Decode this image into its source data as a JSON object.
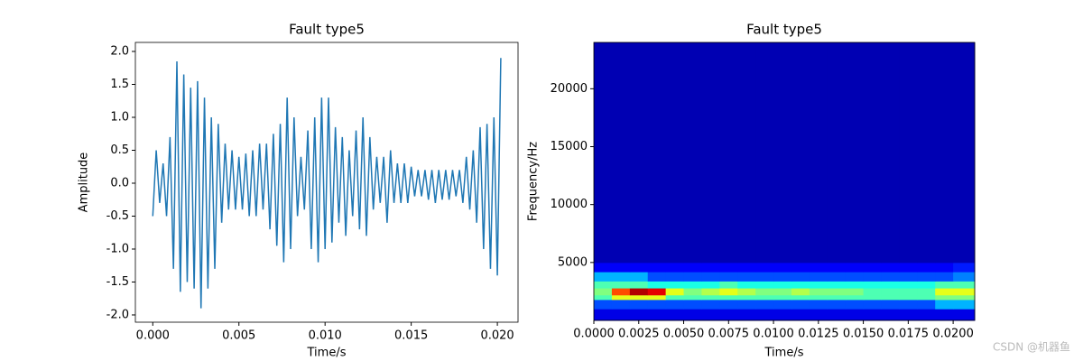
{
  "chart_data": [
    {
      "type": "line",
      "title": "Fault type5",
      "xlabel": "Time/s",
      "ylabel": "Amplitude",
      "color": "#1f77b4",
      "x": [
        0.0,
        0.0002,
        0.0004,
        0.0006,
        0.0008,
        0.001,
        0.0012,
        0.0014,
        0.0016,
        0.0018,
        0.002,
        0.0022,
        0.0024,
        0.0026,
        0.0028,
        0.003,
        0.0032,
        0.0034,
        0.0036,
        0.0038,
        0.004,
        0.0042,
        0.0044,
        0.0046,
        0.0048,
        0.005,
        0.0052,
        0.0054,
        0.0056,
        0.0058,
        0.006,
        0.0062,
        0.0064,
        0.0066,
        0.0068,
        0.007,
        0.0072,
        0.0074,
        0.0076,
        0.0078,
        0.008,
        0.0082,
        0.0084,
        0.0086,
        0.0088,
        0.009,
        0.0092,
        0.0094,
        0.0096,
        0.0098,
        0.01,
        0.0102,
        0.0104,
        0.0106,
        0.0108,
        0.011,
        0.0112,
        0.0114,
        0.0116,
        0.0118,
        0.012,
        0.0122,
        0.0124,
        0.0126,
        0.0128,
        0.013,
        0.0132,
        0.0134,
        0.0136,
        0.0138,
        0.014,
        0.0142,
        0.0144,
        0.0146,
        0.0148,
        0.015,
        0.0152,
        0.0154,
        0.0156,
        0.0158,
        0.016,
        0.0162,
        0.0164,
        0.0166,
        0.0168,
        0.017,
        0.0172,
        0.0174,
        0.0176,
        0.0178,
        0.018,
        0.0182,
        0.0184,
        0.0186,
        0.0188,
        0.019,
        0.0192,
        0.0194,
        0.0196,
        0.0198,
        0.02,
        0.0202
      ],
      "values": [
        -0.5,
        0.5,
        -0.3,
        0.3,
        -0.5,
        0.7,
        -1.3,
        1.85,
        -1.65,
        1.65,
        -1.5,
        1.45,
        -1.6,
        1.55,
        -1.9,
        1.3,
        -1.6,
        1.0,
        -1.3,
        0.9,
        -0.6,
        0.6,
        -0.4,
        0.5,
        -0.4,
        0.4,
        -0.4,
        0.45,
        -0.5,
        0.5,
        -0.5,
        0.6,
        -0.4,
        0.6,
        -0.7,
        0.75,
        -0.95,
        0.9,
        -1.2,
        1.3,
        -1.0,
        1.0,
        -0.5,
        0.4,
        -0.4,
        0.8,
        -1.0,
        1.0,
        -1.2,
        1.3,
        -1.0,
        1.3,
        -0.9,
        0.85,
        -0.6,
        0.7,
        -0.8,
        0.5,
        -0.5,
        0.8,
        -0.7,
        1.0,
        -0.8,
        0.7,
        -0.4,
        0.4,
        -0.3,
        0.4,
        -0.6,
        0.5,
        -0.3,
        0.3,
        -0.3,
        0.3,
        -0.3,
        0.25,
        -0.2,
        0.2,
        -0.2,
        0.2,
        -0.25,
        0.2,
        -0.3,
        0.2,
        -0.25,
        0.2,
        -0.25,
        0.2,
        -0.2,
        0.2,
        -0.3,
        0.4,
        -0.4,
        0.5,
        -0.6,
        0.85,
        -1.0,
        0.9,
        -1.3,
        1.0,
        -1.4,
        1.9
      ],
      "xlim": [
        -0.00101,
        0.0212
      ],
      "xticks": [
        {
          "value": 0,
          "label": "0.000"
        },
        {
          "value": 0.005,
          "label": "0.005"
        },
        {
          "value": 0.01,
          "label": "0.010"
        },
        {
          "value": 0.015,
          "label": "0.015"
        },
        {
          "value": 0.02,
          "label": "0.020"
        }
      ],
      "ylim": [
        -2.11,
        2.137
      ],
      "yticks": [
        {
          "value": -2,
          "label": "-2.0"
        },
        {
          "value": -1.5,
          "label": "-1.5"
        },
        {
          "value": -1,
          "label": "-1.0"
        },
        {
          "value": -0.5,
          "label": "-0.5"
        },
        {
          "value": 0,
          "label": "0.0"
        },
        {
          "value": 0.5,
          "label": "0.5"
        },
        {
          "value": 1,
          "label": "1.0"
        },
        {
          "value": 1.5,
          "label": "1.5"
        },
        {
          "value": 2,
          "label": "2.0"
        }
      ]
    },
    {
      "type": "heatmap",
      "title": "Fault type5",
      "xlabel": "Time/s",
      "ylabel": "Frequency/Hz",
      "colormap": "jet",
      "x_edges": [
        0,
        0.001,
        0.002,
        0.003,
        0.004,
        0.005,
        0.006,
        0.007,
        0.008,
        0.009,
        0.01,
        0.011,
        0.012,
        0.013,
        0.014,
        0.015,
        0.016,
        0.017,
        0.018,
        0.019,
        0.02,
        0.0212
      ],
      "y_edges": [
        0,
        1000,
        1800,
        2200,
        2800,
        3400,
        4200,
        5000,
        24000
      ],
      "z": [
        [
          0.1,
          0.1,
          0.1,
          0.1,
          0.1,
          0.1,
          0.1,
          0.1,
          0.1,
          0.1,
          0.1,
          0.1,
          0.1,
          0.1,
          0.1,
          0.1,
          0.1,
          0.1,
          0.1,
          0.1,
          0.1
        ],
        [
          0.2,
          0.2,
          0.2,
          0.2,
          0.2,
          0.2,
          0.2,
          0.2,
          0.2,
          0.2,
          0.2,
          0.2,
          0.2,
          0.2,
          0.2,
          0.2,
          0.2,
          0.2,
          0.2,
          0.3,
          0.3
        ],
        [
          0.45,
          0.6,
          0.6,
          0.6,
          0.45,
          0.45,
          0.45,
          0.45,
          0.45,
          0.45,
          0.45,
          0.45,
          0.45,
          0.45,
          0.45,
          0.45,
          0.45,
          0.45,
          0.45,
          0.5,
          0.5
        ],
        [
          0.5,
          0.8,
          0.95,
          0.9,
          0.6,
          0.5,
          0.55,
          0.6,
          0.55,
          0.5,
          0.5,
          0.55,
          0.5,
          0.5,
          0.5,
          0.45,
          0.45,
          0.45,
          0.45,
          0.6,
          0.6
        ],
        [
          0.45,
          0.45,
          0.45,
          0.4,
          0.4,
          0.4,
          0.4,
          0.45,
          0.4,
          0.4,
          0.4,
          0.4,
          0.4,
          0.4,
          0.4,
          0.4,
          0.4,
          0.4,
          0.4,
          0.45,
          0.45
        ],
        [
          0.3,
          0.3,
          0.3,
          0.2,
          0.2,
          0.2,
          0.2,
          0.2,
          0.2,
          0.2,
          0.2,
          0.2,
          0.2,
          0.2,
          0.2,
          0.2,
          0.2,
          0.2,
          0.2,
          0.2,
          0.25
        ],
        [
          0.12,
          0.12,
          0.12,
          0.12,
          0.12,
          0.12,
          0.12,
          0.12,
          0.12,
          0.12,
          0.12,
          0.12,
          0.12,
          0.12,
          0.12,
          0.12,
          0.12,
          0.12,
          0.12,
          0.12,
          0.15
        ],
        [
          0.05,
          0.05,
          0.05,
          0.05,
          0.05,
          0.05,
          0.05,
          0.05,
          0.05,
          0.05,
          0.05,
          0.05,
          0.05,
          0.05,
          0.05,
          0.05,
          0.05,
          0.05,
          0.05,
          0.05,
          0.05
        ]
      ],
      "xlim": [
        0,
        0.0212
      ],
      "xticks": [
        {
          "value": 0,
          "label": "0.0000"
        },
        {
          "value": 0.0025,
          "label": "0.0025"
        },
        {
          "value": 0.005,
          "label": "0.0050"
        },
        {
          "value": 0.0075,
          "label": "0.0075"
        },
        {
          "value": 0.01,
          "label": "0.0100"
        },
        {
          "value": 0.0125,
          "label": "0.0125"
        },
        {
          "value": 0.015,
          "label": "0.0150"
        },
        {
          "value": 0.0175,
          "label": "0.0175"
        },
        {
          "value": 0.02,
          "label": "0.0200"
        }
      ],
      "ylim": [
        0,
        24000
      ],
      "yticks": [
        5000,
        10000,
        15000,
        20000
      ]
    }
  ],
  "watermark": "CSDN @机器鱼"
}
